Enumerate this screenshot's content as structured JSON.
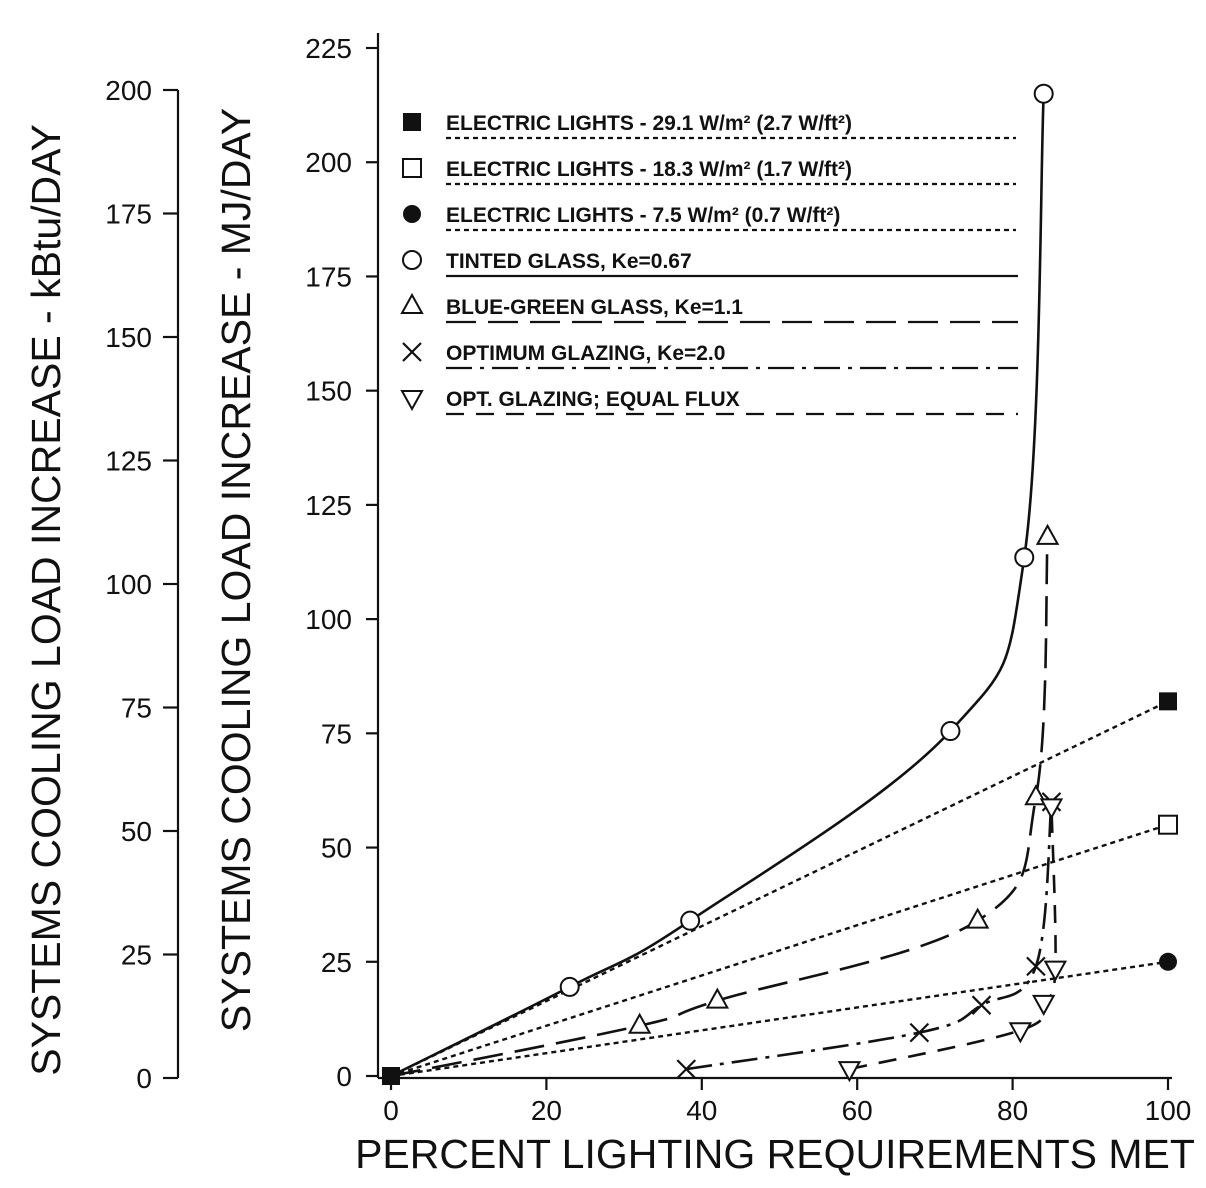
{
  "chart_data": {
    "type": "line",
    "xlabel": "PERCENT LIGHTING REQUIREMENTS MET",
    "ylabel": "SYSTEMS COOLING LOAD INCREASE - MJ/DAY",
    "ylabel_secondary": "SYSTEMS COOLING LOAD INCREASE - kBtu/DAY",
    "xlim": [
      0,
      100
    ],
    "ylim": [
      0,
      225
    ],
    "ylim_secondary": [
      0,
      200
    ],
    "x_ticks": [
      "0",
      "20",
      "40",
      "60",
      "80",
      "100"
    ],
    "y_ticks": [
      "0",
      "25",
      "50",
      "75",
      "100",
      "125",
      "150",
      "175",
      "200",
      "225"
    ],
    "y_ticks_secondary": [
      "0",
      "25",
      "50",
      "75",
      "100",
      "125",
      "150",
      "175",
      "200"
    ],
    "grid": false,
    "legend_position": "top-left (inside plot)",
    "series": [
      {
        "name": "ELECTRIC LIGHTS - 29.1 W/m² (2.7 W/ft²)",
        "marker": "filled-square",
        "line": "dotted",
        "x": [
          0,
          100
        ],
        "y": [
          0,
          82
        ]
      },
      {
        "name": "ELECTRIC LIGHTS - 18.3 W/m² (1.7 W/ft²)",
        "marker": "open-square",
        "line": "dotted",
        "x": [
          0,
          100
        ],
        "y": [
          0,
          55
        ]
      },
      {
        "name": "ELECTRIC LIGHTS - 7.5 W/m² (0.7 W/ft²)",
        "marker": "filled-circle",
        "line": "dotted",
        "x": [
          0,
          100
        ],
        "y": [
          0,
          25
        ]
      },
      {
        "name": "TINTED GLASS, Ke=0.67",
        "marker": "open-circle",
        "line": "solid",
        "x": [
          0,
          23,
          38.5,
          72,
          81.5,
          84
        ],
        "y": [
          0,
          19.5,
          34,
          75.5,
          113.5,
          215
        ]
      },
      {
        "name": "BLUE-GREEN GLASS, Ke=1.1",
        "marker": "open-triangle",
        "line": "long-dash",
        "x": [
          0,
          32,
          42,
          75.5,
          83,
          84.5
        ],
        "y": [
          0,
          11,
          16.5,
          34,
          61,
          118
        ]
      },
      {
        "name": "OPTIMUM GLAZING, Ke=2.0",
        "marker": "x",
        "line": "dash-dot",
        "x": [
          38,
          68,
          76,
          83,
          85
        ],
        "y": [
          1.5,
          9.5,
          15.5,
          24,
          60
        ]
      },
      {
        "name": "OPT. GLAZING; EQUAL FLUX",
        "marker": "down-triangle",
        "line": "dashed",
        "x": [
          59,
          81,
          84,
          85.5,
          85
        ],
        "y": [
          1.5,
          10,
          16,
          23.5,
          59
        ]
      }
    ]
  }
}
